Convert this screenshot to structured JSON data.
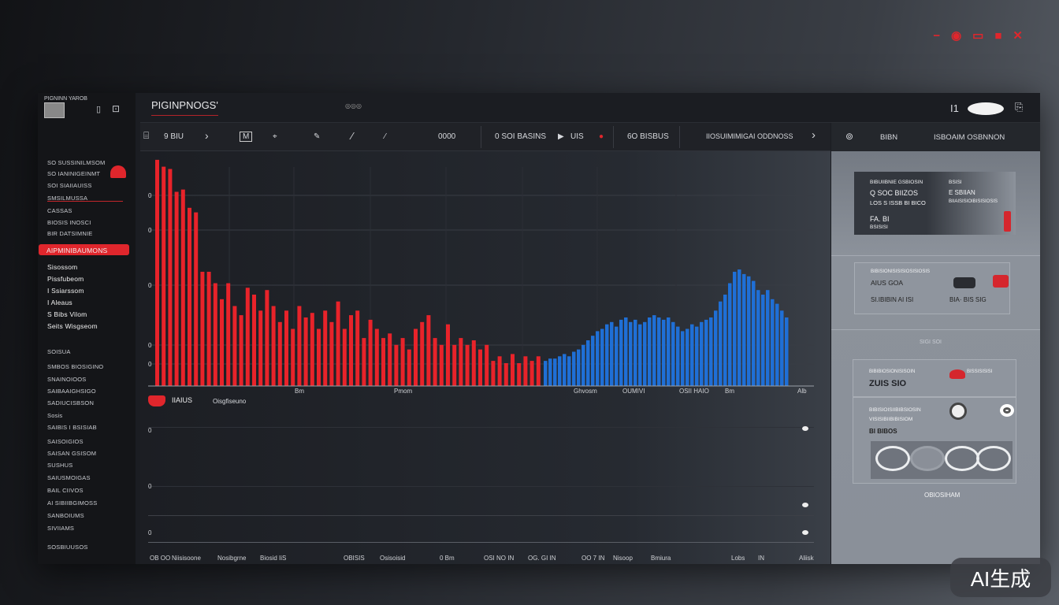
{
  "window_controls": {
    "minimize": "−",
    "record": "◉",
    "restore": "▭",
    "tile": "■",
    "close": "✕"
  },
  "app": {
    "title": "PIGINPNOGS'",
    "logo_text": "PIGNINN YAROB",
    "header_right_label": "I1"
  },
  "sidebar": {
    "items": [
      {
        "label": "SO SUSSINILMSOM"
      },
      {
        "label": "SO IANINIGEINMT"
      },
      {
        "label": "SOI SIAIIAUISS"
      },
      {
        "label": "SMSILMUSSA"
      },
      {
        "label": "CASSAS"
      },
      {
        "label": "BIOSIS INOSCI"
      },
      {
        "label": "BIR DATSIMNIE"
      },
      {
        "label": "AIPMINIBAUMONS",
        "active": true
      },
      {
        "label": "Sisossom"
      },
      {
        "label": "Pissfubeom"
      },
      {
        "label": "I Ssiarssom"
      },
      {
        "label": "I Aleaus"
      },
      {
        "label": "S Bibs Vilom"
      },
      {
        "label": "Seits Wisgseom"
      },
      {
        "label": "SOISUA"
      },
      {
        "label": "SMBOS BIOSIGINO"
      },
      {
        "label": "SNAINOIOOS"
      },
      {
        "label": "SAIBAAIGHSIGO"
      },
      {
        "label": "SADIUCISBSON"
      },
      {
        "label": "Sosis"
      },
      {
        "label": "SAIBIS I BSISIAB"
      },
      {
        "label": "SAISOIGIOS"
      },
      {
        "label": "SAISAN GSISOM"
      },
      {
        "label": "SUSHUS"
      },
      {
        "label": "SAIUSMOIGAS"
      },
      {
        "label": "BAIL CIIVOS"
      },
      {
        "label": "AI SIBIIBGIMOSS"
      },
      {
        "label": "SANBOIUMS"
      },
      {
        "label": "SIVIIAMS"
      },
      {
        "label": "SOSBIUUSOS"
      }
    ]
  },
  "toolbar": {
    "items": [
      "9 BIU",
      "0000",
      "0 SOI BASINS",
      "UIS",
      "6O BISBUS",
      "IIOSUIMIMIGAI ODDNOSS"
    ]
  },
  "right_panel": {
    "tabs": [
      "BIBN",
      "ISBOAIM OSBNNON"
    ],
    "card1": {
      "heading": "BIBUIIBNIE GSBIOSIN",
      "line1": "Q SOC BIIZOS",
      "line2": "LOS S ISSB BI BICO",
      "line3": "FA. BI",
      "line4": "BSISISI",
      "r_head": "BSISI",
      "r_line1": "E SBIIAN",
      "r_line2": "BIIAISISIOIBISISIOSIS"
    },
    "card2": {
      "heading": "BIBISIONISISISIOSISIOSIS",
      "line1": "AIUS GOA",
      "line2": "SI.IBIBIN AI ISI",
      "r_line": "BIA· BIS SIG"
    },
    "card3": {
      "caption": "SIGI SOI",
      "heading": "BIBIBIOSIONISISOIN",
      "value": "ZUIS SIO",
      "r_line": "BISSISISISI"
    },
    "card4": {
      "line1": "BIBISIOISIIBIBSIOSIN",
      "line2": "VISISIBIIBIBISIOM",
      "line3": "BI BIBOS"
    },
    "footer": "OBIOSIHAM"
  },
  "lower_chart": {
    "legend_title": "IIAIUS",
    "legend_subtitle": "Oisgfiseuno",
    "y_ticks": [
      "0",
      "0",
      "0"
    ],
    "x_labels": [
      "OB OO",
      "Niisisoone",
      "Nosibgrne",
      "Biosid IiS",
      "OBISIS",
      "Osisoisid",
      "0 Bm",
      "OSI NO IN",
      "OG. GI IN",
      "OO 7 IN",
      "Nisoop",
      "Bmiura",
      "Lobs",
      "IN",
      "Aliisk"
    ]
  },
  "badge": "AI生成",
  "chart_data": {
    "type": "bar",
    "title": "PIGINPNOGS'",
    "ylim": [
      0,
      100
    ],
    "y_ticks": [
      "0",
      "0",
      "0",
      "0",
      "0"
    ],
    "x_labels": [
      "Bm",
      "Pmom",
      "Ghvosm",
      "OUMIVI",
      "OSII HAIO",
      "Bm",
      "Alb"
    ],
    "series": [
      {
        "name": "red",
        "color": "#e8232a",
        "values": [
          99,
          96,
          95,
          85,
          86,
          78,
          76,
          50,
          50,
          45,
          38,
          45,
          35,
          31,
          43,
          40,
          33,
          42,
          35,
          28,
          33,
          25,
          35,
          30,
          32,
          25,
          33,
          28,
          37,
          25,
          31,
          33,
          21,
          29,
          25,
          21,
          23,
          18,
          21,
          16,
          25,
          28,
          31,
          21,
          18,
          27,
          18,
          21,
          18,
          20,
          16,
          18,
          11,
          13,
          10,
          14,
          10,
          13,
          11,
          13
        ]
      },
      {
        "name": "blue",
        "color": "#1f6fd6",
        "values": [
          11,
          12,
          12,
          13,
          14,
          13,
          15,
          16,
          18,
          20,
          22,
          24,
          25,
          27,
          28,
          26,
          29,
          30,
          28,
          29,
          27,
          28,
          30,
          31,
          30,
          29,
          30,
          28,
          26,
          24,
          25,
          27,
          26,
          28,
          29,
          30,
          33,
          37,
          40,
          45,
          50,
          51,
          49,
          48,
          46,
          42,
          40,
          42,
          38,
          36,
          33,
          30
        ]
      }
    ]
  }
}
